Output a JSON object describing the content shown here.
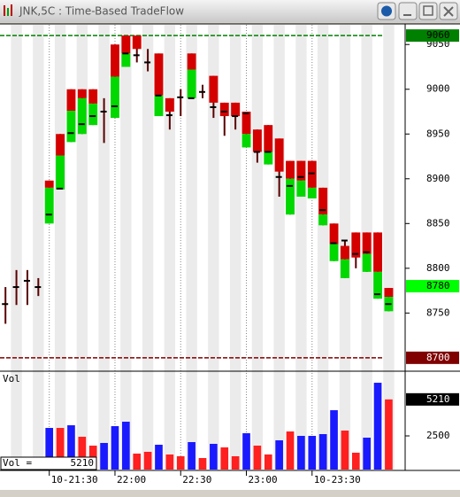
{
  "title": "JNK,5C : Time-Based TradeFlow",
  "chart_data": {
    "type": "tradeflow",
    "red_color": "#d40000",
    "green_color": "#00d800",
    "wick_color": "#5a0000",
    "ylim": [
      8686,
      9072
    ],
    "yticks": [
      9050,
      9000,
      8950,
      8900,
      8850,
      8800,
      8750
    ],
    "xlim": [
      -0.5,
      36.5
    ],
    "xticks": [
      {
        "value": 4,
        "label": "10-21:30"
      },
      {
        "value": 10,
        "label": "22:00"
      },
      {
        "value": 16,
        "label": "22:30"
      },
      {
        "value": 22,
        "label": "23:00"
      },
      {
        "value": 28,
        "label": "10-23:30"
      }
    ],
    "levels": [
      {
        "value": 9060,
        "color": "#008000"
      },
      {
        "value": 8700,
        "color": "#800000"
      }
    ],
    "last_price": 8780,
    "bars": [
      {
        "high": 8779,
        "low": 8738,
        "red": null,
        "green": null,
        "close": 8760
      },
      {
        "high": 8798,
        "low": 8759,
        "red": null,
        "green": null,
        "close": 8779
      },
      {
        "high": 8798,
        "low": 8759,
        "red": null,
        "green": null,
        "close": 8786
      },
      {
        "high": 8789,
        "low": 8769,
        "red": null,
        "green": null,
        "close": 8779
      },
      {
        "high": 8898,
        "low": 8850,
        "red": [
          8898,
          8890
        ],
        "green": [
          8890,
          8850
        ],
        "close": 8860
      },
      {
        "high": 8950,
        "low": 8888,
        "red": [
          8950,
          8926
        ],
        "green": [
          8926,
          8888
        ],
        "close": 8889
      },
      {
        "high": 9000,
        "low": 8941,
        "red": [
          9000,
          8976
        ],
        "green": [
          8976,
          8941
        ],
        "close": 8951
      },
      {
        "high": 9000,
        "low": 8950,
        "red": [
          9000,
          8990
        ],
        "green": [
          8990,
          8950
        ],
        "close": 8961
      },
      {
        "high": 9000,
        "low": 8960,
        "red": [
          9000,
          8984
        ],
        "green": [
          8984,
          8960
        ],
        "close": 8970
      },
      {
        "high": 8990,
        "low": 8940,
        "red": null,
        "green": null,
        "close": 8975
      },
      {
        "high": 9050,
        "low": 8968,
        "red": [
          9050,
          9014
        ],
        "green": [
          9014,
          8968
        ],
        "close": 8981
      },
      {
        "high": 9060,
        "low": 9025,
        "red": [
          9060,
          9040
        ],
        "green": [
          9040,
          9025
        ],
        "close": 9040
      },
      {
        "high": 9060,
        "low": 9030,
        "red": [
          9060,
          9045
        ],
        "green": null,
        "close": 9038
      },
      {
        "high": 9045,
        "low": 9020,
        "red": null,
        "green": null,
        "close": 9030
      },
      {
        "high": 9040,
        "low": 8970,
        "red": [
          9040,
          8993
        ],
        "green": [
          8993,
          8970
        ],
        "close": 8993
      },
      {
        "high": 8990,
        "low": 8955,
        "red": [
          8990,
          8975
        ],
        "green": null,
        "close": 8971
      },
      {
        "high": 9000,
        "low": 8970,
        "red": null,
        "green": null,
        "close": 8991
      },
      {
        "high": 9040,
        "low": 8990,
        "red": [
          9040,
          9022
        ],
        "green": [
          9022,
          8990
        ],
        "close": 8990
      },
      {
        "high": 9005,
        "low": 8990,
        "red": null,
        "green": null,
        "close": 8997
      },
      {
        "high": 9015,
        "low": 8968,
        "red": [
          9015,
          8985
        ],
        "green": null,
        "close": 8980
      },
      {
        "high": 8985,
        "low": 8948,
        "red": [
          8985,
          8970
        ],
        "green": null,
        "close": 8975
      },
      {
        "high": 8985,
        "low": 8955,
        "red": [
          8985,
          8970
        ],
        "green": null,
        "close": 8970
      },
      {
        "high": 8975,
        "low": 8935,
        "red": [
          8975,
          8950
        ],
        "green": [
          8950,
          8935
        ],
        "close": 8973
      },
      {
        "high": 8955,
        "low": 8918,
        "red": [
          8955,
          8930
        ],
        "green": null,
        "close": 8930
      },
      {
        "high": 8960,
        "low": 8916,
        "red": [
          8960,
          8930
        ],
        "green": [
          8930,
          8916
        ],
        "close": 8930
      },
      {
        "high": 8945,
        "low": 8880,
        "red": [
          8945,
          8908
        ],
        "green": null,
        "close": 8902
      },
      {
        "high": 8920,
        "low": 8860,
        "red": [
          8920,
          8900
        ],
        "green": [
          8900,
          8860
        ],
        "close": 8892
      },
      {
        "high": 8920,
        "low": 8880,
        "red": [
          8920,
          8898
        ],
        "green": [
          8898,
          8880
        ],
        "close": 8902
      },
      {
        "high": 8920,
        "low": 8878,
        "red": [
          8920,
          8890
        ],
        "green": [
          8890,
          8878
        ],
        "close": 8906
      },
      {
        "high": 8890,
        "low": 8848,
        "red": [
          8890,
          8860
        ],
        "green": [
          8860,
          8848
        ],
        "close": 8865
      },
      {
        "high": 8850,
        "low": 8808,
        "red": [
          8850,
          8827
        ],
        "green": [
          8827,
          8808
        ],
        "close": 8828
      },
      {
        "high": 8830,
        "low": 8789,
        "red": [
          8825,
          8810
        ],
        "green": [
          8810,
          8789
        ],
        "close": 8831
      },
      {
        "high": 8840,
        "low": 8800,
        "red": [
          8840,
          8812
        ],
        "green": null,
        "close": 8816
      },
      {
        "high": 8840,
        "low": 8796,
        "red": [
          8840,
          8816
        ],
        "green": [
          8816,
          8796
        ],
        "close": 8818
      },
      {
        "high": 8840,
        "low": 8766,
        "red": [
          8840,
          8796
        ],
        "green": [
          8796,
          8766
        ],
        "close": 8771
      },
      {
        "high": 8778,
        "low": 8752,
        "red": [
          8778,
          8768
        ],
        "green": [
          8768,
          8752
        ],
        "close": 8760
      }
    ],
    "volume": {
      "label": "Vol",
      "legend": "Vol =",
      "ylim": [
        0,
        7240
      ],
      "yticks": [
        2500
      ],
      "values": [
        null,
        null,
        null,
        null,
        3092,
        3092,
        3289,
        2434,
        1776,
        1974,
        3224,
        3553,
        1184,
        1316,
        1842,
        1118,
        987,
        2039,
        855,
        1908,
        1645,
        987,
        2697,
        1776,
        1118,
        2171,
        2829,
        2500,
        2500,
        2632,
        4408,
        2895,
        1250,
        2368,
        6447,
        5210
      ],
      "colors": [
        null,
        null,
        null,
        null,
        "#1a1aff",
        "#ff2020",
        "#1a1aff",
        "#ff2020",
        "#ff2020",
        "#1a1aff",
        "#1a1aff",
        "#1a1aff",
        "#ff2020",
        "#ff2020",
        "#1a1aff",
        "#ff2020",
        "#ff2020",
        "#1a1aff",
        "#ff2020",
        "#1a1aff",
        "#ff2020",
        "#ff2020",
        "#1a1aff",
        "#ff2020",
        "#ff2020",
        "#1a1aff",
        "#ff2020",
        "#1a1aff",
        "#1a1aff",
        "#1a1aff",
        "#1a1aff",
        "#ff2020",
        "#ff2020",
        "#1a1aff",
        "#1a1aff",
        "#ff2020"
      ]
    }
  }
}
